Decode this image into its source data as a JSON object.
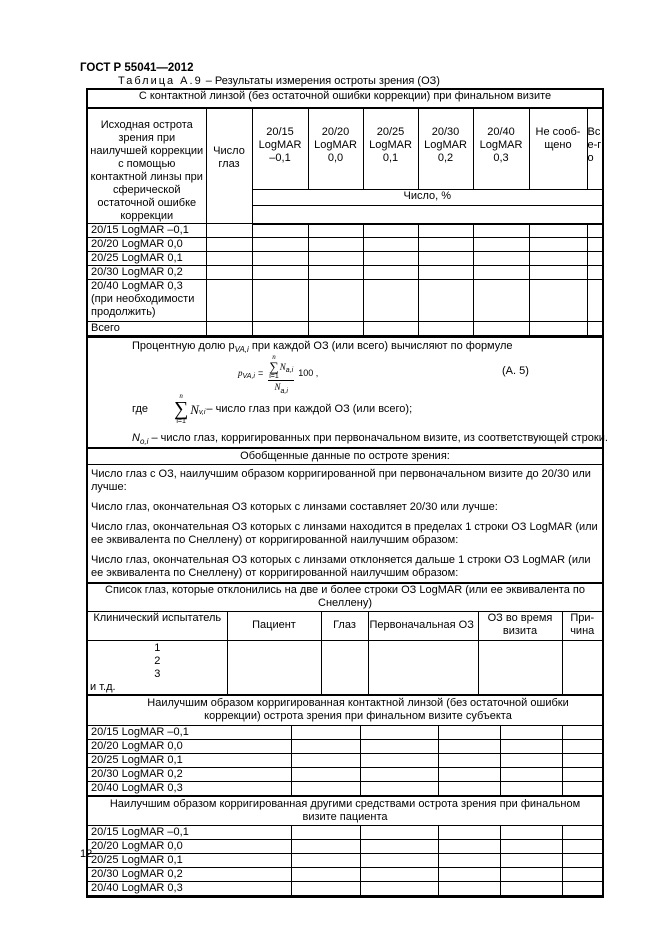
{
  "header": {
    "doc_id": "ГОСТ Р 55041—2012",
    "caption_label": "Таблица А.9",
    "caption_text": " – Результаты измерения остроты зрения (ОЗ)"
  },
  "table1": {
    "title": "С контактной линзой (без остаточной ошибки коррекции) при финальном визите",
    "row_header": "Исходная острота зрения при наилучшей коррекции с помощью контактной линзы при сферической остаточной ошибке коррекции",
    "eyes_header": "Число глаз",
    "columns": [
      "20/15 LogMAR –0,1",
      "20/20 LogMAR 0,0",
      "20/25 LogMAR 0,1",
      "20/30 LogMAR 0,2",
      "20/40 LogMAR 0,3",
      "Не сооб-щено",
      "Все-го"
    ],
    "unit_row": "Число, %",
    "rows": [
      "20/15 LogMAR –0,1",
      "20/20 LogMAR 0,0",
      "20/25 LogMAR 0,1",
      "20/30 LogMAR 0,2",
      "20/40 LogMAR 0,3 (при необходимости продолжить)",
      "Всего"
    ]
  },
  "formula": {
    "intro": "Процентную долю p",
    "intro_sub": "VA,i",
    "intro_rest": " при каждой ОЗ (или всего) вычисляют по формуле",
    "number": "(А. 5)",
    "where": "где",
    "def1": " – число глаз при каждой ОЗ (или всего);",
    "def2_sym": "N",
    "def2_sub": "o,i",
    "def2": " – число глаз, корригированных при первоначальном визите, из соответствующей строки."
  },
  "summary": {
    "title": "Обобщенные данные по остроте зрения:",
    "lines": [
      "Число глаз с ОЗ, наилучшим образом корригированной при первоначальном визите до 20/30 или лучше:",
      "Число глаз, окончательная ОЗ которых с линзами составляет 20/30 или лучше:",
      "Число глаз, окончательная ОЗ которых с линзами находится в пределах 1 строки ОЗ LogMAR (или ее эквивалента по Снеллену) от корригированной наилучшим образом:",
      "Число глаз, окончательная ОЗ которых с линзами отклоняется дальше 1 строки ОЗ LogMAR (или ее эквивалента по Снеллену) от корригированной наилучшим образом:"
    ]
  },
  "deviated": {
    "title": "Список глаз, которые отклонились на две и более строки ОЗ LogMAR (или ее эквивалента по Снеллену)",
    "columns": [
      "Клинический испытатель",
      "Пациент",
      "Глаз",
      "Первоначальная ОЗ",
      "ОЗ во время визита",
      "При-чина"
    ],
    "items": [
      "1",
      "2",
      "3"
    ],
    "etc": "и т.д."
  },
  "table2": {
    "title": "Наилучшим образом корригированная контактной линзой (без остаточной ошибки коррекции) острота зрения при финальном визите  субъекта",
    "rows": [
      "20/15 LogMAR –0,1",
      "20/20 LogMAR 0,0",
      "20/25 LogMAR 0,1",
      "20/30 LogMAR 0,2",
      "20/40 LogMAR 0,3"
    ]
  },
  "table3": {
    "title": "Наилучшим образом корригированная другими средствами острота зрения при финальном визите пациента",
    "rows": [
      "20/15 LogMAR –0,1",
      "20/20 LogMAR 0,0",
      "20/25 LogMAR 0,1",
      "20/30 LogMAR 0,2",
      "20/40 LogMAR 0,3"
    ]
  },
  "footer": {
    "page_number": "12"
  }
}
